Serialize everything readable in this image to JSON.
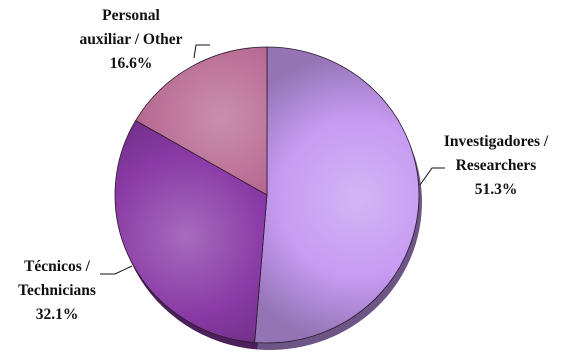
{
  "chart_data": {
    "type": "pie",
    "title": "",
    "slices": [
      {
        "label_lines": [
          "Investigadores /",
          "Researchers"
        ],
        "value_label": "51.3%",
        "value": 51.3,
        "color": "#c79bf2"
      },
      {
        "label_lines": [
          "Técnicos /",
          "Technicians"
        ],
        "value_label": "32.1%",
        "value": 32.1,
        "color": "#8a3aa6"
      },
      {
        "label_lines": [
          "Personal",
          "auxiliar / Other"
        ],
        "value_label": "16.6%",
        "value": 16.6,
        "color": "#b86a92"
      }
    ],
    "legend": "none",
    "style": "3d-shaded"
  }
}
